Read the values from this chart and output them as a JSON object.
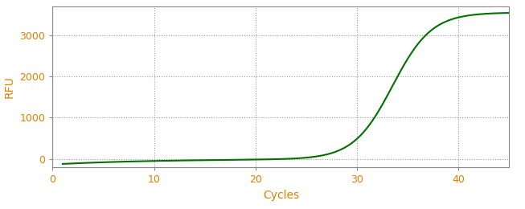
{
  "title": "",
  "xlabel": "Cycles",
  "ylabel": "RFU",
  "xlim": [
    0,
    45
  ],
  "ylim": [
    -200,
    3700
  ],
  "yticks": [
    0,
    1000,
    2000,
    3000
  ],
  "xticks": [
    0,
    10,
    20,
    30,
    40
  ],
  "line_color": "#007000",
  "line_width": 1.5,
  "background_color": "#ffffff",
  "plot_bg_color": "#ffffff",
  "grid_color": "#999999",
  "tick_color": "#e08000",
  "label_color": "#e08000",
  "spine_color": "#888888",
  "sigmoid_L": 3550,
  "sigmoid_k": 0.52,
  "sigmoid_x0": 33.5,
  "x_start": 1,
  "x_end": 45,
  "decay_amplitude": -120,
  "decay_rate": 0.1
}
